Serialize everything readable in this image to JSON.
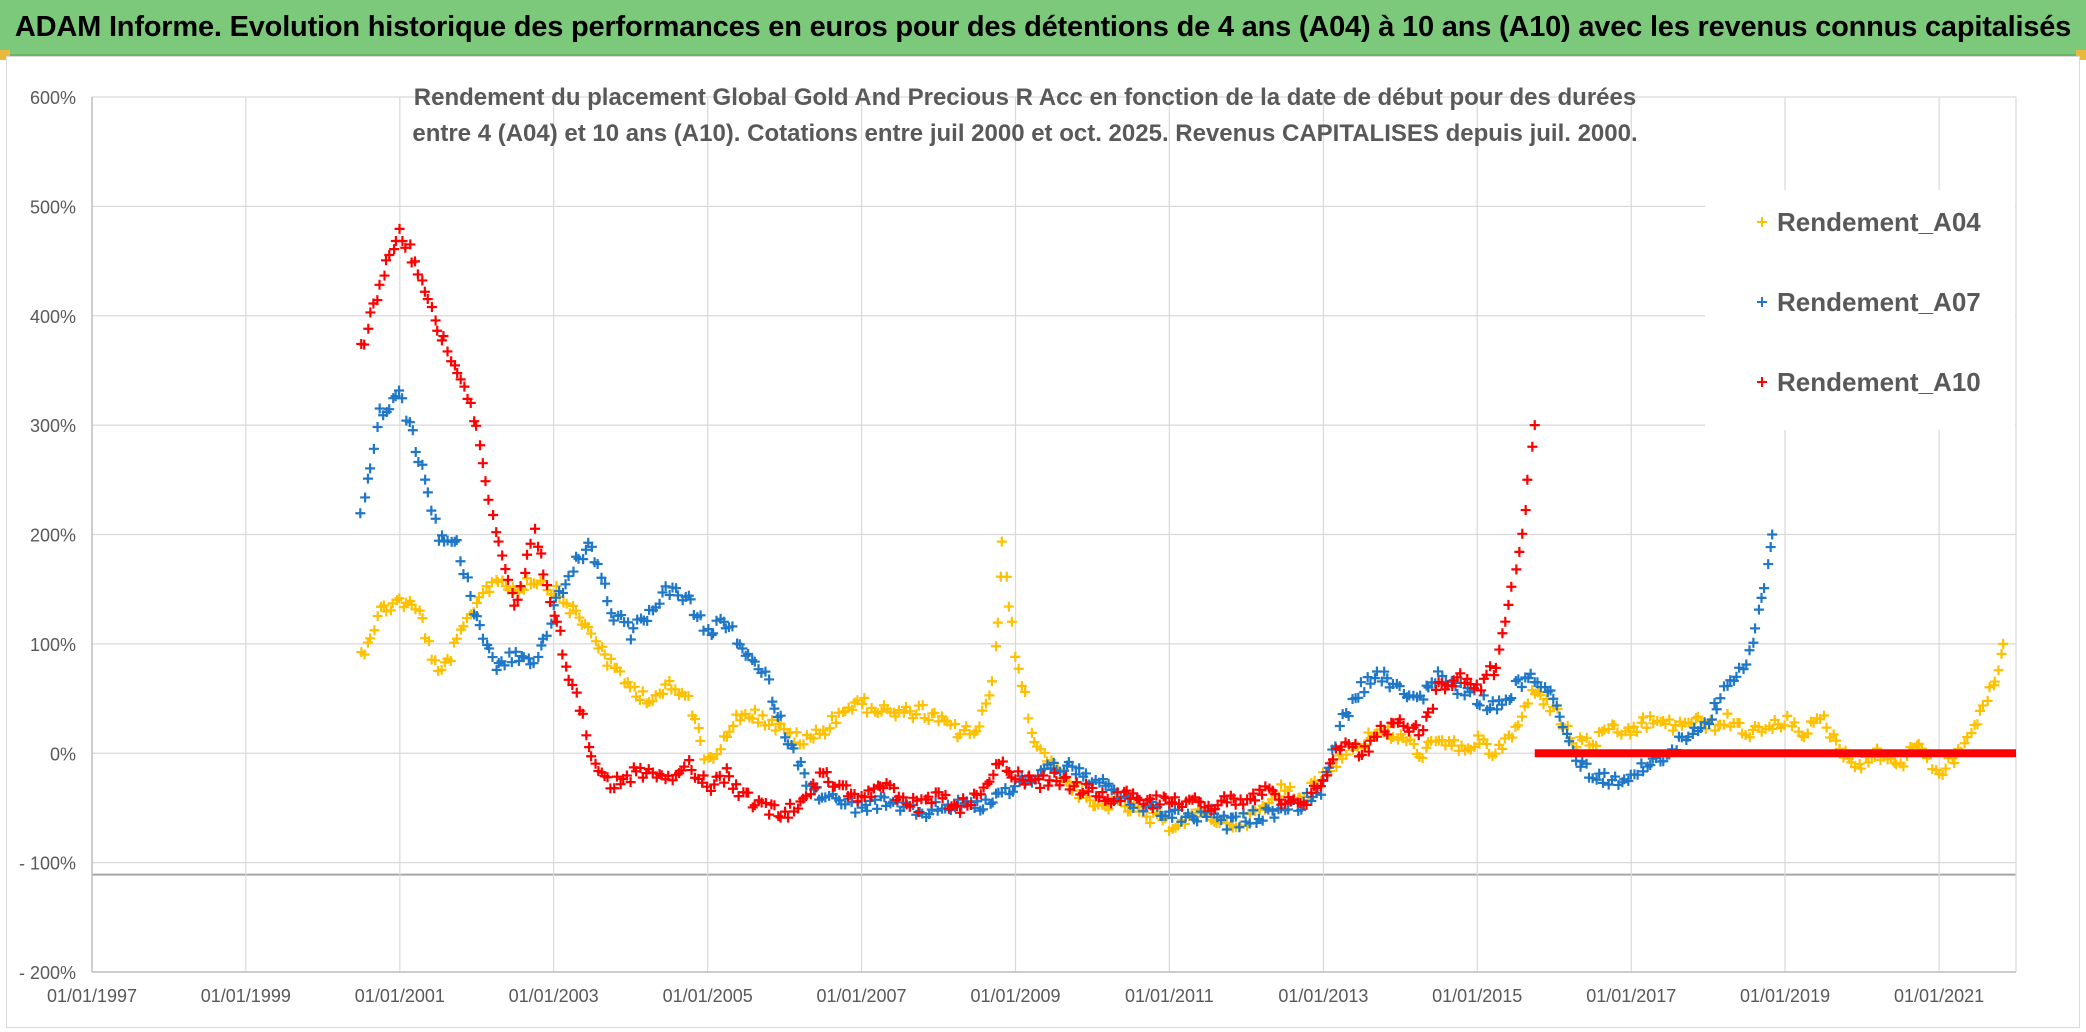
{
  "header": {
    "title": "ADAM Informe. Evolution historique des performances en euros pour des détentions de 4 ans (A04) à 10 ans (A10) avec les revenus connus capitalisés"
  },
  "chart_data": {
    "type": "scatter",
    "title_line1": "Rendement du placement Global Gold And Precious R Acc en fonction de la date de début pour des durées",
    "title_line2": "entre 4 (A04) et 10 ans (A10). Cotations entre juil 2000 et oct. 2025. Revenus CAPITALISES depuis juil. 2000.",
    "ylim": [
      -200,
      600
    ],
    "xlim": [
      "1997-01-01",
      "2022-01-01"
    ],
    "x_ticks": [
      "01/01/1997",
      "01/01/1999",
      "01/01/2001",
      "01/01/2003",
      "01/01/2005",
      "01/01/2007",
      "01/01/2009",
      "01/01/2011",
      "01/01/2013",
      "01/01/2015",
      "01/01/2017",
      "01/01/2019",
      "01/01/2021"
    ],
    "y_ticks": [
      "600%",
      "500%",
      "400%",
      "300%",
      "200%",
      "100%",
      "0%",
      "- 100%",
      "- 200%"
    ],
    "grid": true,
    "legend_position": "top-right",
    "marker": "+",
    "series": [
      {
        "name": "Rendement_A04",
        "color": "#ffc000",
        "points": [
          [
            "2000-07-01",
            90
          ],
          [
            "2000-10-01",
            130
          ],
          [
            "2001-01-01",
            140
          ],
          [
            "2001-04-01",
            130
          ],
          [
            "2001-07-01",
            70
          ],
          [
            "2001-10-01",
            100
          ],
          [
            "2002-01-01",
            140
          ],
          [
            "2002-04-01",
            160
          ],
          [
            "2002-07-01",
            150
          ],
          [
            "2002-10-01",
            160
          ],
          [
            "2003-01-01",
            150
          ],
          [
            "2003-04-01",
            130
          ],
          [
            "2003-07-01",
            110
          ],
          [
            "2003-10-01",
            80
          ],
          [
            "2004-01-01",
            60
          ],
          [
            "2004-04-01",
            50
          ],
          [
            "2004-07-01",
            60
          ],
          [
            "2004-10-01",
            50
          ],
          [
            "2005-01-01",
            -10
          ],
          [
            "2005-04-01",
            20
          ],
          [
            "2005-07-01",
            40
          ],
          [
            "2005-10-01",
            30
          ],
          [
            "2006-01-01",
            20
          ],
          [
            "2006-04-01",
            10
          ],
          [
            "2006-07-01",
            20
          ],
          [
            "2006-10-01",
            40
          ],
          [
            "2007-01-01",
            45
          ],
          [
            "2007-04-01",
            40
          ],
          [
            "2007-07-01",
            35
          ],
          [
            "2007-10-01",
            40
          ],
          [
            "2008-01-01",
            30
          ],
          [
            "2008-04-01",
            20
          ],
          [
            "2008-07-01",
            20
          ],
          [
            "2008-09-15",
            60
          ],
          [
            "2008-11-01",
            190
          ],
          [
            "2009-01-01",
            90
          ],
          [
            "2009-04-01",
            10
          ],
          [
            "2009-07-01",
            -10
          ],
          [
            "2009-10-01",
            -30
          ],
          [
            "2010-01-01",
            -50
          ],
          [
            "2010-04-01",
            -45
          ],
          [
            "2010-07-01",
            -50
          ],
          [
            "2010-10-01",
            -60
          ],
          [
            "2011-01-01",
            -65
          ],
          [
            "2011-04-01",
            -60
          ],
          [
            "2011-07-01",
            -55
          ],
          [
            "2011-10-01",
            -65
          ],
          [
            "2012-01-01",
            -60
          ],
          [
            "2012-04-01",
            -50
          ],
          [
            "2012-07-01",
            -30
          ],
          [
            "2012-10-01",
            -40
          ],
          [
            "2013-01-01",
            -20
          ],
          [
            "2013-04-01",
            0
          ],
          [
            "2013-07-01",
            10
          ],
          [
            "2013-10-01",
            20
          ],
          [
            "2014-01-01",
            15
          ],
          [
            "2014-04-01",
            0
          ],
          [
            "2014-07-01",
            10
          ],
          [
            "2014-10-01",
            5
          ],
          [
            "2015-01-01",
            10
          ],
          [
            "2015-04-01",
            0
          ],
          [
            "2015-07-01",
            20
          ],
          [
            "2015-10-01",
            60
          ],
          [
            "2016-01-01",
            40
          ],
          [
            "2016-04-01",
            10
          ],
          [
            "2016-07-01",
            10
          ],
          [
            "2016-10-01",
            20
          ],
          [
            "2017-01-01",
            20
          ],
          [
            "2017-04-01",
            30
          ],
          [
            "2017-07-01",
            25
          ],
          [
            "2017-10-01",
            30
          ],
          [
            "2018-01-01",
            25
          ],
          [
            "2018-04-01",
            30
          ],
          [
            "2018-07-01",
            20
          ],
          [
            "2018-10-01",
            20
          ],
          [
            "2019-01-01",
            30
          ],
          [
            "2019-04-01",
            20
          ],
          [
            "2019-07-01",
            30
          ],
          [
            "2019-10-01",
            0
          ],
          [
            "2020-01-01",
            -10
          ],
          [
            "2020-04-01",
            0
          ],
          [
            "2020-07-01",
            -10
          ],
          [
            "2020-10-01",
            10
          ],
          [
            "2021-01-01",
            -20
          ],
          [
            "2021-04-01",
            0
          ],
          [
            "2021-07-01",
            30
          ],
          [
            "2021-09-15",
            60
          ],
          [
            "2021-11-01",
            100
          ]
        ]
      },
      {
        "name": "Rendement_A07",
        "color": "#1f77c8",
        "points": [
          [
            "2000-07-01",
            220
          ],
          [
            "2000-10-01",
            310
          ],
          [
            "2001-01-01",
            330
          ],
          [
            "2001-04-01",
            270
          ],
          [
            "2001-07-01",
            200
          ],
          [
            "2001-10-01",
            190
          ],
          [
            "2002-01-01",
            120
          ],
          [
            "2002-04-01",
            80
          ],
          [
            "2002-07-01",
            90
          ],
          [
            "2002-10-01",
            80
          ],
          [
            "2003-01-01",
            130
          ],
          [
            "2003-04-01",
            170
          ],
          [
            "2003-07-01",
            190
          ],
          [
            "2003-10-01",
            130
          ],
          [
            "2004-01-01",
            110
          ],
          [
            "2004-04-01",
            130
          ],
          [
            "2004-07-01",
            150
          ],
          [
            "2004-10-01",
            140
          ],
          [
            "2005-01-01",
            110
          ],
          [
            "2005-04-01",
            120
          ],
          [
            "2005-07-01",
            90
          ],
          [
            "2005-10-01",
            70
          ],
          [
            "2006-01-01",
            20
          ],
          [
            "2006-04-01",
            -20
          ],
          [
            "2006-07-01",
            -40
          ],
          [
            "2006-10-01",
            -45
          ],
          [
            "2007-01-01",
            -50
          ],
          [
            "2007-04-01",
            -45
          ],
          [
            "2007-07-01",
            -50
          ],
          [
            "2007-10-01",
            -55
          ],
          [
            "2008-01-01",
            -50
          ],
          [
            "2008-04-01",
            -45
          ],
          [
            "2008-07-01",
            -50
          ],
          [
            "2008-10-01",
            -40
          ],
          [
            "2009-01-01",
            -30
          ],
          [
            "2009-04-01",
            -20
          ],
          [
            "2009-07-01",
            -10
          ],
          [
            "2009-10-01",
            -15
          ],
          [
            "2010-01-01",
            -25
          ],
          [
            "2010-04-01",
            -35
          ],
          [
            "2010-07-01",
            -45
          ],
          [
            "2010-10-01",
            -50
          ],
          [
            "2011-01-01",
            -55
          ],
          [
            "2011-04-01",
            -60
          ],
          [
            "2011-07-01",
            -55
          ],
          [
            "2011-10-01",
            -65
          ],
          [
            "2012-01-01",
            -60
          ],
          [
            "2012-04-01",
            -55
          ],
          [
            "2012-07-01",
            -50
          ],
          [
            "2012-10-01",
            -45
          ],
          [
            "2013-01-01",
            -30
          ],
          [
            "2013-04-01",
            30
          ],
          [
            "2013-07-01",
            60
          ],
          [
            "2013-10-01",
            70
          ],
          [
            "2014-01-01",
            60
          ],
          [
            "2014-04-01",
            50
          ],
          [
            "2014-07-01",
            70
          ],
          [
            "2014-10-01",
            60
          ],
          [
            "2015-01-01",
            50
          ],
          [
            "2015-04-01",
            40
          ],
          [
            "2015-07-01",
            60
          ],
          [
            "2015-10-01",
            70
          ],
          [
            "2016-01-01",
            50
          ],
          [
            "2016-04-01",
            0
          ],
          [
            "2016-07-01",
            -20
          ],
          [
            "2016-10-01",
            -25
          ],
          [
            "2017-01-01",
            -20
          ],
          [
            "2017-04-01",
            -10
          ],
          [
            "2017-07-01",
            0
          ],
          [
            "2017-10-01",
            20
          ],
          [
            "2018-01-01",
            30
          ],
          [
            "2018-04-01",
            60
          ],
          [
            "2018-07-01",
            80
          ],
          [
            "2018-09-15",
            140
          ],
          [
            "2018-11-01",
            200
          ]
        ]
      },
      {
        "name": "Rendement_A10",
        "color": "#ff0000",
        "points": [
          [
            "2000-07-01",
            370
          ],
          [
            "2000-10-01",
            430
          ],
          [
            "2001-01-01",
            480
          ],
          [
            "2001-04-01",
            440
          ],
          [
            "2001-07-01",
            390
          ],
          [
            "2001-10-01",
            350
          ],
          [
            "2002-01-01",
            300
          ],
          [
            "2002-04-01",
            200
          ],
          [
            "2002-07-01",
            130
          ],
          [
            "2002-10-01",
            200
          ],
          [
            "2003-01-01",
            130
          ],
          [
            "2003-04-01",
            60
          ],
          [
            "2003-07-01",
            0
          ],
          [
            "2003-10-01",
            -30
          ],
          [
            "2004-01-01",
            -20
          ],
          [
            "2004-04-01",
            -15
          ],
          [
            "2004-07-01",
            -20
          ],
          [
            "2004-10-01",
            -10
          ],
          [
            "2005-01-01",
            -30
          ],
          [
            "2005-04-01",
            -20
          ],
          [
            "2005-07-01",
            -40
          ],
          [
            "2005-10-01",
            -50
          ],
          [
            "2006-01-01",
            -55
          ],
          [
            "2006-04-01",
            -40
          ],
          [
            "2006-07-01",
            -20
          ],
          [
            "2006-10-01",
            -30
          ],
          [
            "2007-01-01",
            -40
          ],
          [
            "2007-04-01",
            -30
          ],
          [
            "2007-07-01",
            -40
          ],
          [
            "2007-10-01",
            -50
          ],
          [
            "2008-01-01",
            -40
          ],
          [
            "2008-04-01",
            -50
          ],
          [
            "2008-07-01",
            -40
          ],
          [
            "2008-10-01",
            -10
          ],
          [
            "2009-01-01",
            -20
          ],
          [
            "2009-04-01",
            -30
          ],
          [
            "2009-07-01",
            -20
          ],
          [
            "2009-10-01",
            -30
          ],
          [
            "2010-01-01",
            -35
          ],
          [
            "2010-04-01",
            -40
          ],
          [
            "2010-07-01",
            -35
          ],
          [
            "2010-10-01",
            -45
          ],
          [
            "2011-01-01",
            -40
          ],
          [
            "2011-04-01",
            -45
          ],
          [
            "2011-07-01",
            -50
          ],
          [
            "2011-10-01",
            -40
          ],
          [
            "2012-01-01",
            -45
          ],
          [
            "2012-04-01",
            -35
          ],
          [
            "2012-07-01",
            -45
          ],
          [
            "2012-10-01",
            -50
          ],
          [
            "2013-01-01",
            -20
          ],
          [
            "2013-04-01",
            10
          ],
          [
            "2013-07-01",
            0
          ],
          [
            "2013-10-01",
            20
          ],
          [
            "2014-01-01",
            30
          ],
          [
            "2014-04-01",
            20
          ],
          [
            "2014-07-01",
            60
          ],
          [
            "2014-10-01",
            70
          ],
          [
            "2015-01-01",
            60
          ],
          [
            "2015-04-01",
            80
          ],
          [
            "2015-06-01",
            140
          ],
          [
            "2015-08-01",
            200
          ],
          [
            "2015-10-01",
            300
          ]
        ]
      }
    ],
    "zero_segment": {
      "series": "Rendement_A10",
      "from": "2015-10-01",
      "to": "2022-01-01",
      "value": 0
    }
  }
}
